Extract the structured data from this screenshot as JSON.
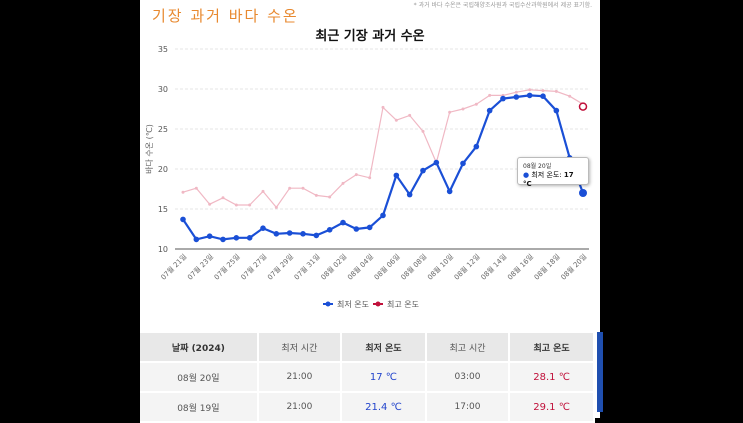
{
  "header": {
    "note": "* 과거 바다 수온은 국립해양조사원과 국립수산과학원에서 제공 표기함.",
    "heading": "기장 과거 바다 수온"
  },
  "chart_data": {
    "type": "line",
    "title": "최근 기장 과거 수온",
    "ylabel": "바다 수온 (℃)",
    "ylim": [
      10,
      35
    ],
    "yticks": [
      10,
      15,
      20,
      25,
      30,
      35
    ],
    "x": [
      "07월 21일",
      "07월 22일",
      "07월 23일",
      "07월 24일",
      "07월 25일",
      "07월 26일",
      "07월 27일",
      "07월 28일",
      "07월 29일",
      "07월 30일",
      "07월 31일",
      "08월 01일",
      "08월 02일",
      "08월 03일",
      "08월 04일",
      "08월 05일",
      "08월 06일",
      "08월 07일",
      "08월 08일",
      "08월 09일",
      "08월 10일",
      "08월 11일",
      "08월 12일",
      "08월 13일",
      "08월 14일",
      "08월 15일",
      "08월 16일",
      "08월 17일",
      "08월 18일",
      "08월 19일",
      "08월 20일"
    ],
    "series": [
      {
        "name": "최저 온도",
        "color": "#1a4fd6",
        "values": [
          13.7,
          11.2,
          11.6,
          11.2,
          11.4,
          11.4,
          12.6,
          11.9,
          12.0,
          11.9,
          11.7,
          12.4,
          13.3,
          12.5,
          12.7,
          14.2,
          19.2,
          16.8,
          19.8,
          20.8,
          17.2,
          20.7,
          22.8,
          27.3,
          28.8,
          29.0,
          29.2,
          29.1,
          27.3,
          21.4,
          17
        ]
      },
      {
        "name": "최고 온도",
        "color": "#c0103a",
        "values": [
          17.1,
          17.6,
          15.6,
          16.4,
          15.5,
          15.5,
          17.2,
          15.2,
          17.6,
          17.6,
          16.7,
          16.5,
          18.2,
          19.3,
          18.9,
          27.7,
          26.1,
          26.7,
          24.7,
          20.8,
          27.1,
          27.5,
          28.1,
          29.2,
          29.2,
          29.6,
          29.9,
          29.8,
          29.7,
          29.1,
          28.1
        ]
      }
    ],
    "legend": "bottom",
    "tooltip": {
      "date": "08월 20일",
      "label": "최저 온도:",
      "value": "17 °C"
    }
  },
  "table": {
    "headers": [
      "날짜 (2024)",
      "최저 시간",
      "최저 온도",
      "최고 시간",
      "최고 온도"
    ],
    "rows": [
      [
        "08월 20일",
        "21:00",
        "17 ℃",
        "03:00",
        "28.1 ℃"
      ],
      [
        "08월 19일",
        "21:00",
        "21.4 ℃",
        "17:00",
        "29.1 ℃"
      ]
    ]
  }
}
